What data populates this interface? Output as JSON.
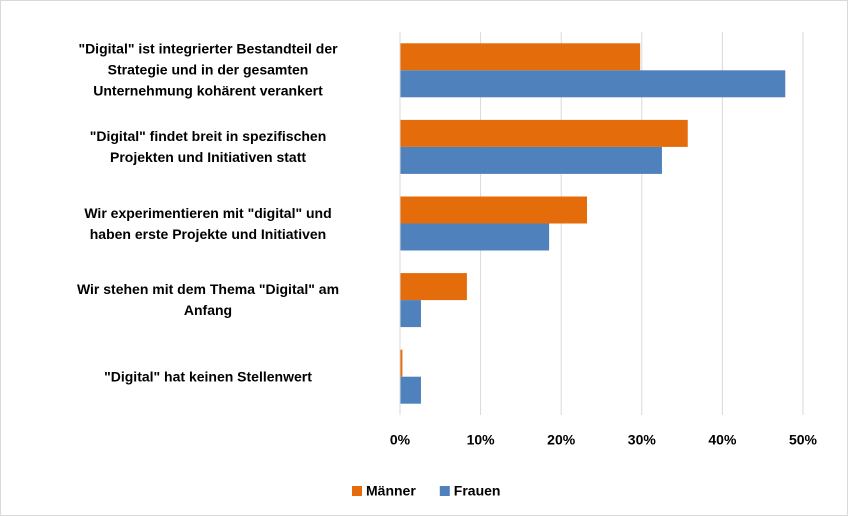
{
  "chart_data": {
    "type": "bar",
    "orientation": "horizontal",
    "categories": [
      "\"Digital\" ist integrierter Bestandteil der\nStrategie und in der gesamten\nUnternehmung kohärent verankert",
      "\"Digital\" findet breit in spezifischen\nProjekten und Initiativen statt",
      "Wir experimentieren mit \"digital\" und\nhaben erste Projekte und Initiativen",
      "Wir stehen mit dem Thema \"Digital\" am\nAnfang",
      "\"Digital\" hat keinen Stellenwert"
    ],
    "series": [
      {
        "name": "Männer",
        "color": "#e46c0a",
        "values": [
          29.8,
          35.7,
          23.2,
          8.3,
          0.3
        ]
      },
      {
        "name": "Frauen",
        "color": "#4f81bd",
        "values": [
          47.8,
          32.5,
          18.5,
          2.6,
          2.6
        ]
      }
    ],
    "xlim": [
      0,
      50
    ],
    "xticks": [
      {
        "value": 0,
        "label": "0%"
      },
      {
        "value": 10,
        "label": "10%"
      },
      {
        "value": 20,
        "label": "20%"
      },
      {
        "value": 30,
        "label": "30%"
      },
      {
        "value": 40,
        "label": "40%"
      },
      {
        "value": 50,
        "label": "50%"
      }
    ],
    "grid": true,
    "legend": "bottom"
  }
}
